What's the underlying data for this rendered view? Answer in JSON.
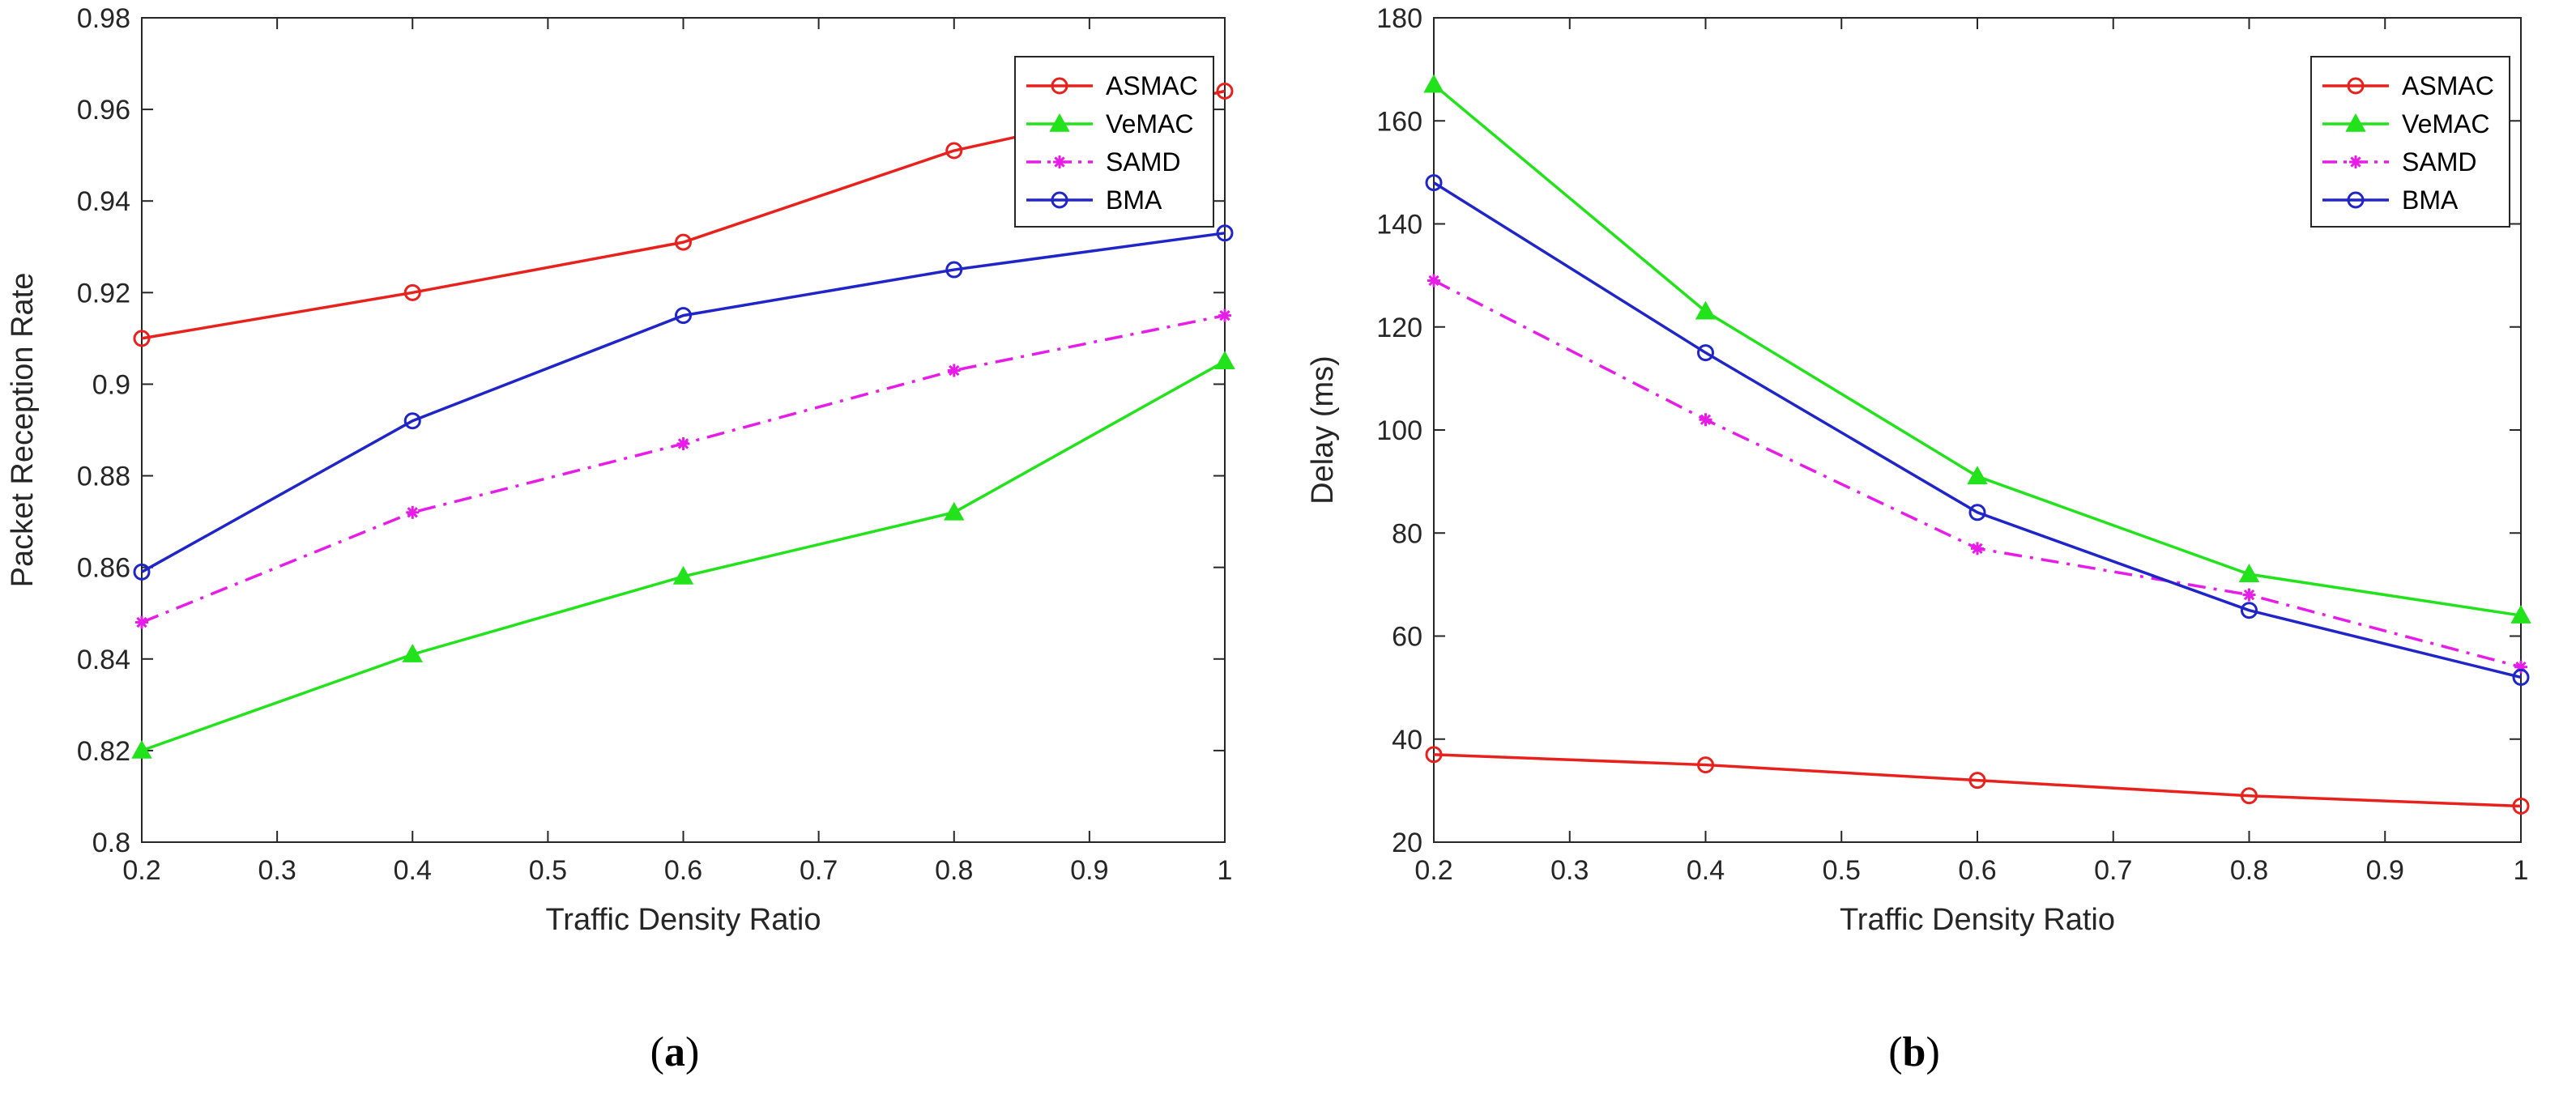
{
  "chart_data": [
    {
      "id": "a",
      "type": "line",
      "caption_open": "(",
      "caption_letter": "a",
      "caption_close": ")",
      "xlabel": "Traffic Density Ratio",
      "ylabel": "Packet Reception Rate",
      "xlim": [
        0.2,
        1
      ],
      "ylim": [
        0.8,
        0.98
      ],
      "xticks": [
        0.2,
        0.3,
        0.4,
        0.5,
        0.6,
        0.7,
        0.8,
        0.9,
        1
      ],
      "xtick_labels": [
        "0.2",
        "0.3",
        "0.4",
        "0.5",
        "0.6",
        "0.7",
        "0.8",
        "0.9",
        "1"
      ],
      "yticks": [
        0.8,
        0.82,
        0.84,
        0.86,
        0.88,
        0.9,
        0.92,
        0.94,
        0.96,
        0.98
      ],
      "ytick_labels": [
        "0.8",
        "0.82",
        "0.84",
        "0.86",
        "0.88",
        "0.9",
        "0.92",
        "0.94",
        "0.96",
        "0.98"
      ],
      "x": [
        0.2,
        0.4,
        0.6,
        0.8,
        1.0
      ],
      "legend_position": "top-right",
      "series": [
        {
          "name": "ASMAC",
          "color": "#e8211d",
          "marker": "circle",
          "dash": "solid",
          "values": [
            0.91,
            0.92,
            0.931,
            0.951,
            0.964
          ]
        },
        {
          "name": "VeMAC",
          "color": "#22e31b",
          "marker": "triangle",
          "dash": "solid",
          "values": [
            0.82,
            0.841,
            0.858,
            0.872,
            0.905
          ]
        },
        {
          "name": "SAMD",
          "color": "#e81ce8",
          "marker": "star",
          "dash": "dashdot",
          "values": [
            0.848,
            0.872,
            0.887,
            0.903,
            0.915
          ]
        },
        {
          "name": "BMA",
          "color": "#1f25c8",
          "marker": "circle",
          "dash": "solid",
          "values": [
            0.859,
            0.892,
            0.915,
            0.925,
            0.933
          ]
        }
      ]
    },
    {
      "id": "b",
      "type": "line",
      "caption_open": "(",
      "caption_letter": "b",
      "caption_close": ")",
      "xlabel": "Traffic Density Ratio",
      "ylabel": "Delay (ms)",
      "xlim": [
        0.2,
        1
      ],
      "ylim": [
        20,
        180
      ],
      "xticks": [
        0.2,
        0.3,
        0.4,
        0.5,
        0.6,
        0.7,
        0.8,
        0.9,
        1
      ],
      "xtick_labels": [
        "0.2",
        "0.3",
        "0.4",
        "0.5",
        "0.6",
        "0.7",
        "0.8",
        "0.9",
        "1"
      ],
      "yticks": [
        20,
        40,
        60,
        80,
        100,
        120,
        140,
        160,
        180
      ],
      "ytick_labels": [
        "20",
        "40",
        "60",
        "80",
        "100",
        "120",
        "140",
        "160",
        "180"
      ],
      "x": [
        0.2,
        0.4,
        0.6,
        0.8,
        1.0
      ],
      "legend_position": "top-right",
      "series": [
        {
          "name": "ASMAC",
          "color": "#e8211d",
          "marker": "circle",
          "dash": "solid",
          "values": [
            37,
            35,
            32,
            29,
            27
          ]
        },
        {
          "name": "VeMAC",
          "color": "#22e31b",
          "marker": "triangle",
          "dash": "solid",
          "values": [
            167,
            123,
            91,
            72,
            64
          ]
        },
        {
          "name": "SAMD",
          "color": "#e81ce8",
          "marker": "star",
          "dash": "dashdot",
          "values": [
            129,
            102,
            77,
            68,
            54
          ]
        },
        {
          "name": "BMA",
          "color": "#1f25c8",
          "marker": "circle",
          "dash": "solid",
          "values": [
            148,
            115,
            84,
            65,
            52
          ]
        }
      ]
    }
  ]
}
